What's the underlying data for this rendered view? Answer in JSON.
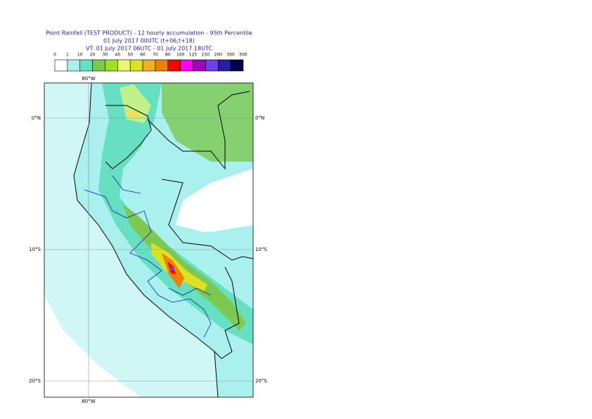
{
  "header": {
    "title_lines": [
      "Point Rainfall (TEST PRODUCT) - 12 hourly accumulation - 95th Percentile",
      "01 July 2017 00UTC (t+06,t+18)",
      "VT: 01 July 2017 06UTC - 01 July 2017 18UTC"
    ]
  },
  "legend": {
    "levels": [
      0,
      1,
      10,
      20,
      30,
      40,
      50,
      60,
      70,
      80,
      100,
      125,
      150,
      200,
      300,
      500
    ],
    "colors": [
      "#ffffff",
      "#aaf0ee",
      "#66e0c0",
      "#7cc850",
      "#a0e020",
      "#e8f870",
      "#e0e020",
      "#f0b020",
      "#f08000",
      "#ff0000",
      "#ff00ff",
      "#a000c0",
      "#7040f0",
      "#2020a0",
      "#000050"
    ]
  },
  "map": {
    "lon_labels": [
      "80°W",
      "80°W"
    ],
    "lat_labels": [
      "0°N",
      "10°S",
      "20°S"
    ]
  }
}
